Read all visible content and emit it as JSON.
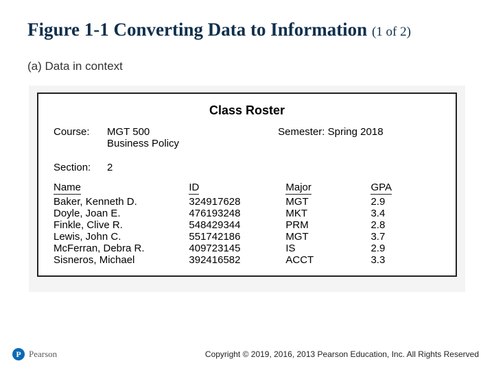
{
  "title_main": "Figure 1-1 Converting Data to Information ",
  "title_part": "(1 of 2)",
  "subtitle": "(a) Data in context",
  "roster": {
    "heading": "Class Roster",
    "course_label": "Course:",
    "course_value1": "MGT 500",
    "course_value2": "Business Policy",
    "semester_label_value": "Semester: Spring 2018",
    "section_label": "Section:",
    "section_value": "2",
    "headers": {
      "name": "Name",
      "id": "ID",
      "major": "Major",
      "gpa": "GPA"
    },
    "rows": [
      {
        "name": "Baker, Kenneth D.",
        "id": "324917628",
        "major": "MGT",
        "gpa": "2.9"
      },
      {
        "name": "Doyle, Joan E.",
        "id": "476193248",
        "major": "MKT",
        "gpa": "3.4"
      },
      {
        "name": "Finkle, Clive R.",
        "id": "548429344",
        "major": "PRM",
        "gpa": "2.8"
      },
      {
        "name": "Lewis, John C.",
        "id": "551742186",
        "major": "MGT",
        "gpa": "3.7"
      },
      {
        "name": "McFerran, Debra R.",
        "id": "409723145",
        "major": "IS",
        "gpa": "2.9"
      },
      {
        "name": "Sisneros, Michael",
        "id": "392416582",
        "major": "ACCT",
        "gpa": "3.3"
      }
    ]
  },
  "brand": {
    "badge": "P",
    "name": "Pearson"
  },
  "copyright": "Copyright © 2019, 2016, 2013 Pearson Education, Inc. All Rights Reserved"
}
